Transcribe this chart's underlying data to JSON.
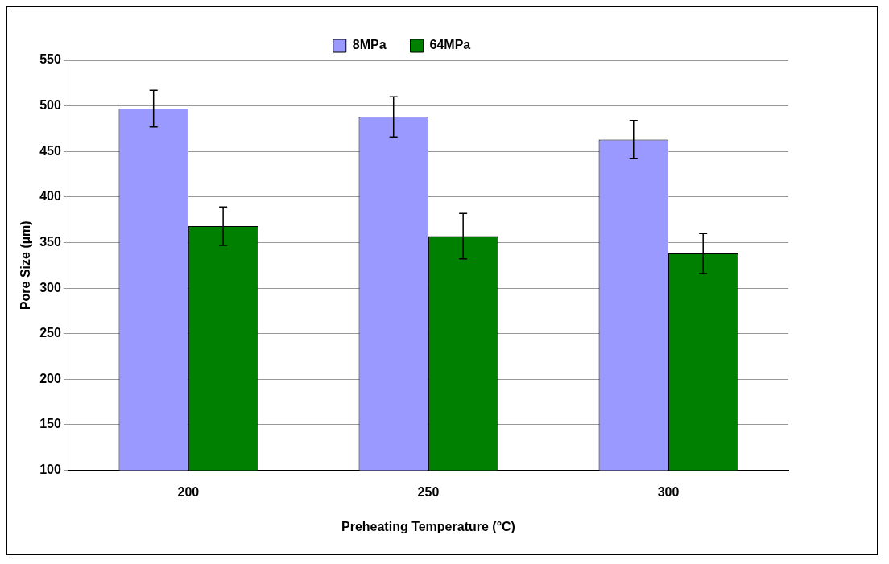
{
  "chart_data": {
    "type": "bar",
    "xlabel": "Preheating Temperature (°C)",
    "ylabel": "Pore Size (µm)",
    "categories": [
      "200",
      "250",
      "300"
    ],
    "series": [
      {
        "name": "8MPa",
        "color": "#9999ff",
        "values": [
          497,
          488,
          463
        ],
        "errors": [
          20,
          22,
          21
        ]
      },
      {
        "name": "64MPa",
        "color": "#008000",
        "values": [
          368,
          357,
          338
        ],
        "errors": [
          21,
          25,
          22
        ]
      }
    ],
    "ylim": [
      100,
      550
    ],
    "yticks": [
      100,
      150,
      200,
      250,
      300,
      350,
      400,
      450,
      500,
      550
    ],
    "grid": "y",
    "legend": "top"
  }
}
